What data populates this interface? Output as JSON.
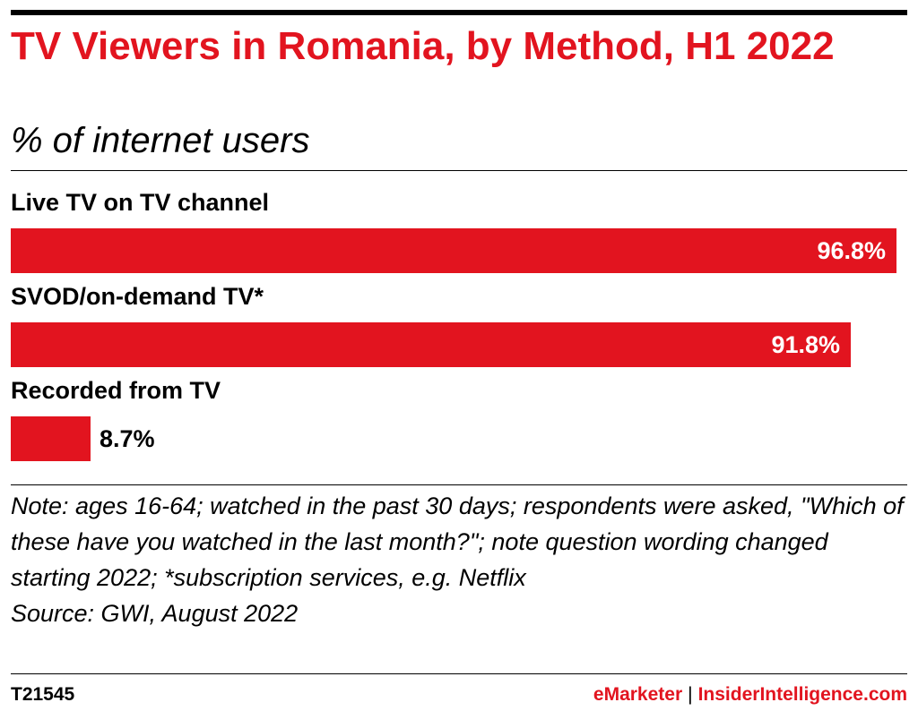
{
  "header": {
    "title": "TV Viewers in Romania, by Method, H1 2022",
    "subtitle": "% of internet users"
  },
  "chart_data": {
    "type": "bar",
    "orientation": "horizontal",
    "title": "TV Viewers in Romania, by Method, H1 2022",
    "subtitle": "% of internet users",
    "categories": [
      "Live TV on TV channel",
      "SVOD/on-demand TV*",
      "Recorded from TV"
    ],
    "values": [
      96.8,
      91.8,
      8.7
    ],
    "value_labels": [
      "96.8%",
      "91.8%",
      "8.7%"
    ],
    "xlim": [
      0,
      96.8
    ],
    "grid": false,
    "legend": "none",
    "bar_color": "#e2141f"
  },
  "footer": {
    "note": "Note: ages 16-64; watched in the past 30 days; respondents were asked, \"Which of these have you watched in the last month?\"; note question wording changed starting 2022; *subscription services, e.g. Netflix",
    "source": "Source: GWI, August 2022",
    "chart_id": "T21545",
    "brand_emarketer": "eMarketer",
    "brand_separator": "|",
    "brand_insider": "InsiderIntelligence.com"
  },
  "colors": {
    "accent": "#e2141f",
    "text": "#000000",
    "background": "#ffffff"
  }
}
